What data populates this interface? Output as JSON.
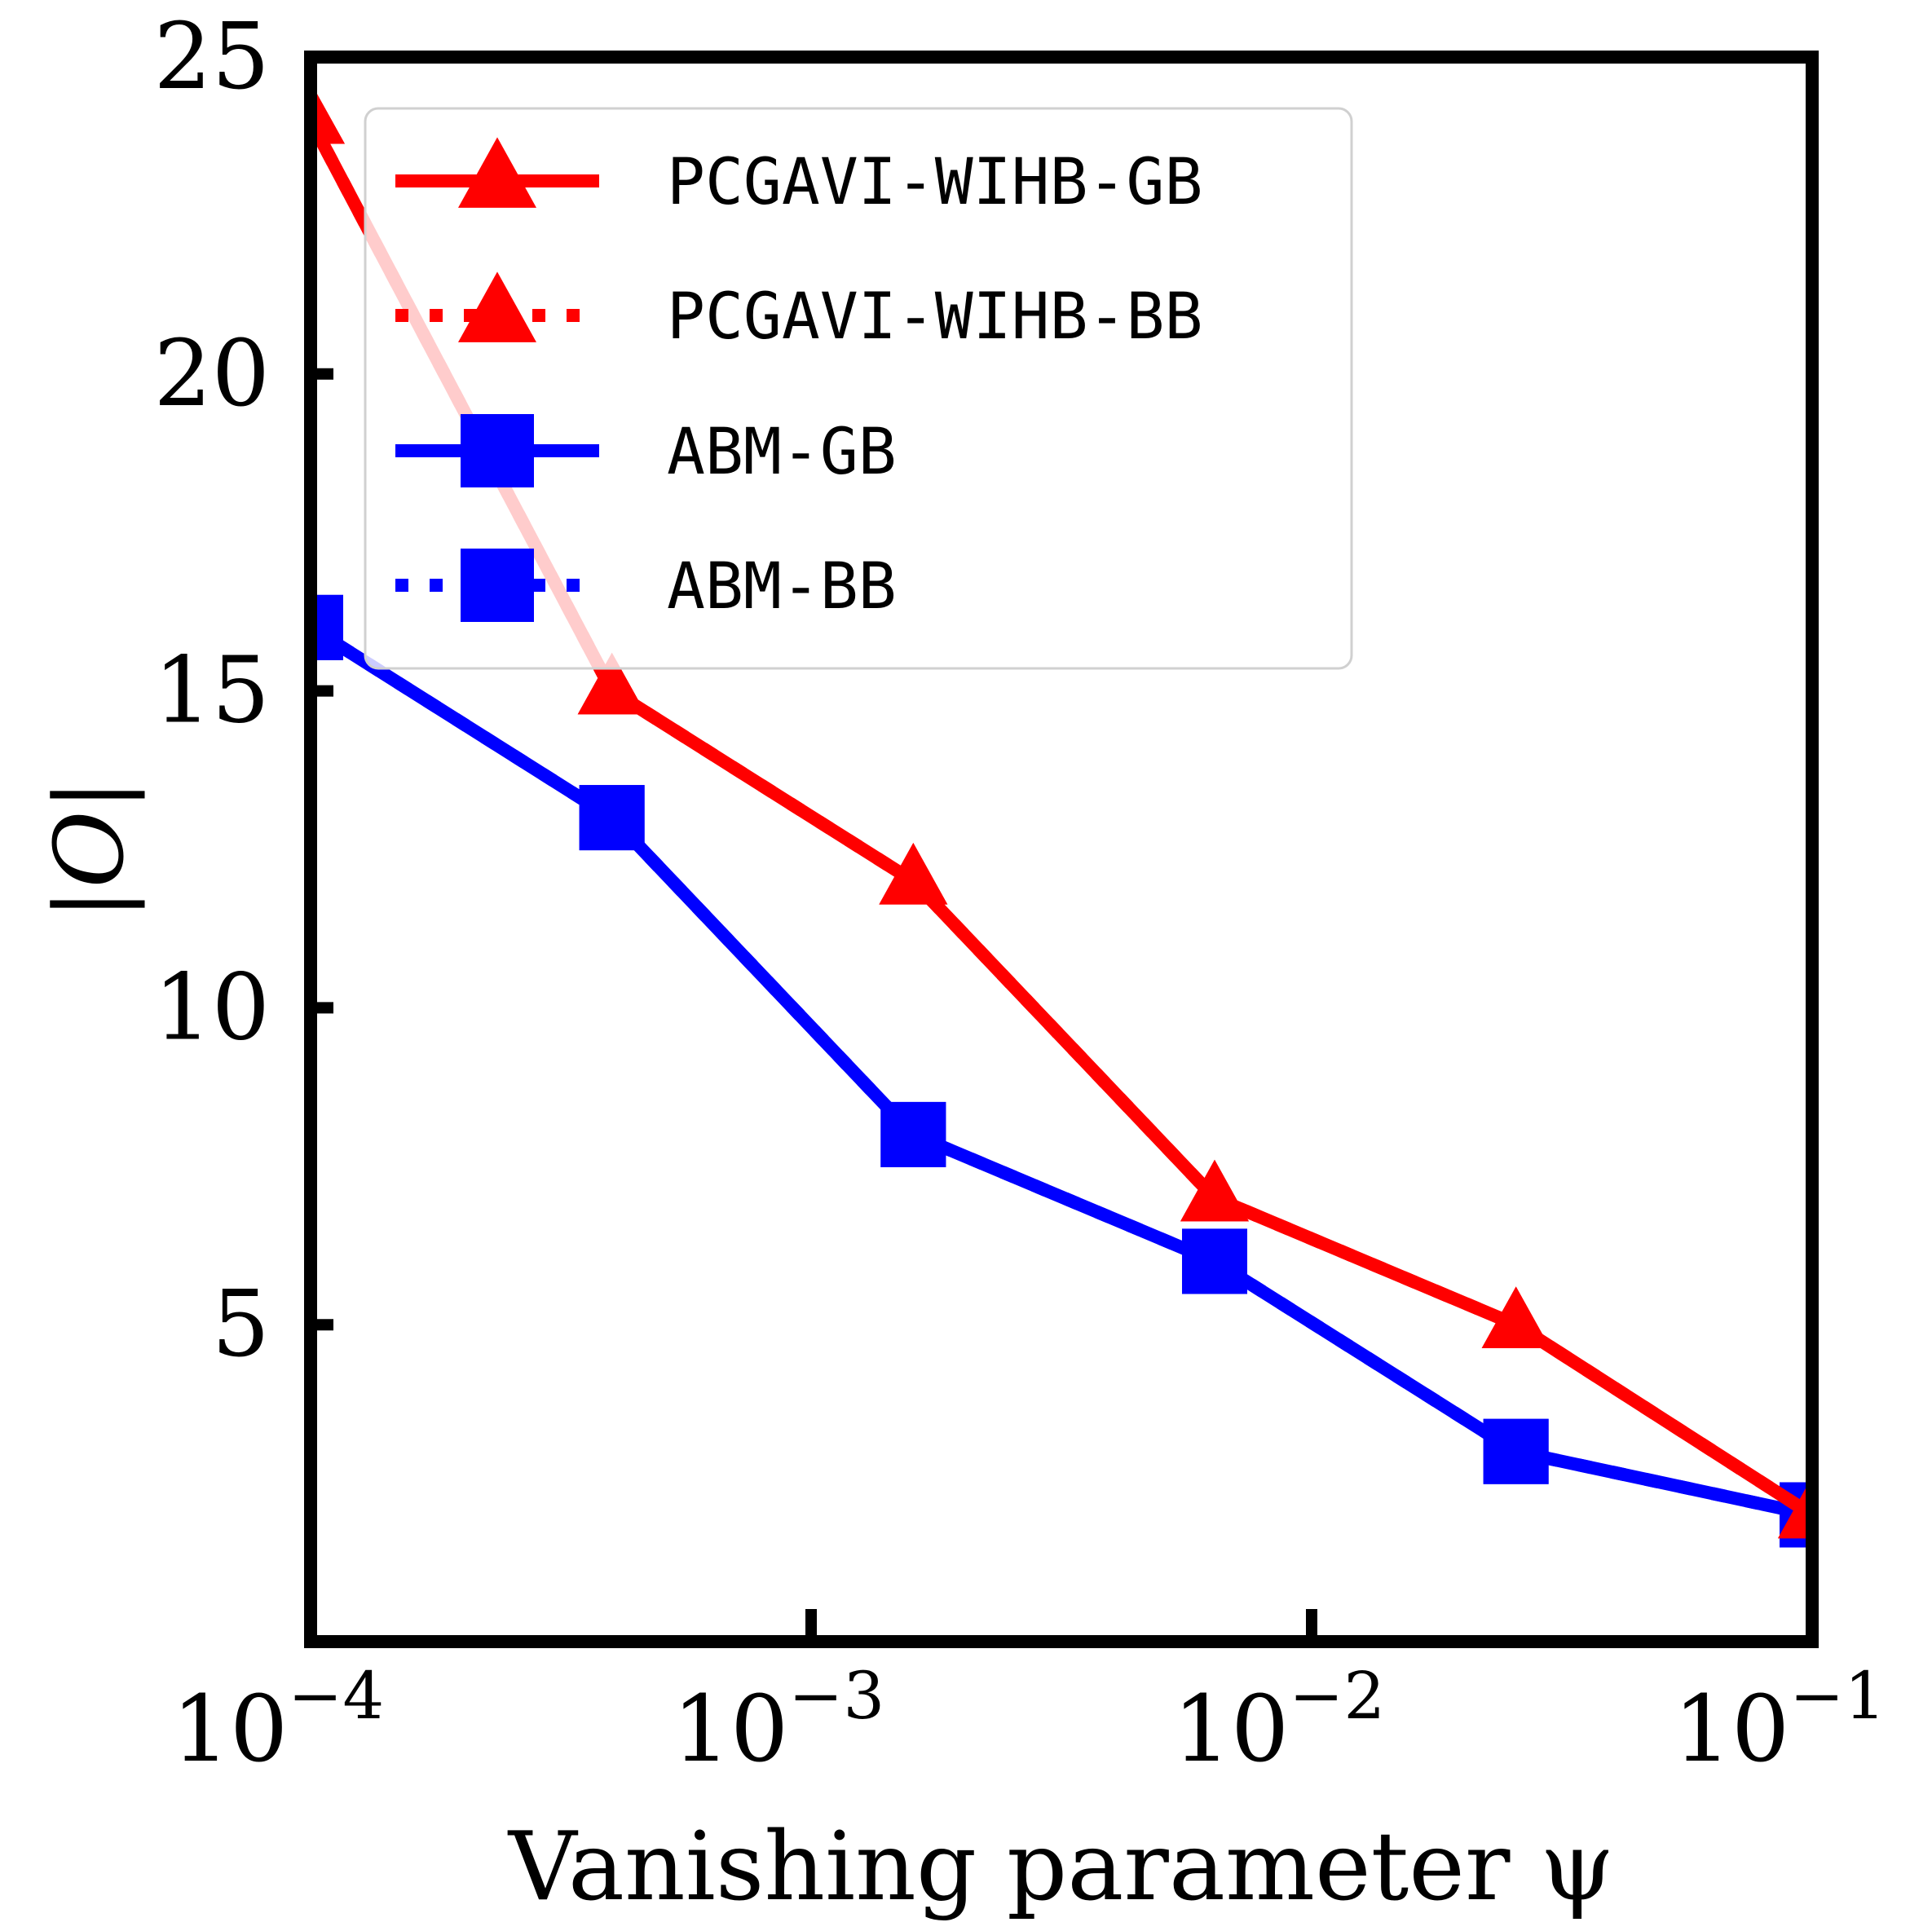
{
  "chart_data": {
    "type": "line",
    "xlabel": "Vanishing parameter ψ",
    "ylabel": "|O|",
    "xscale": "log",
    "xlim": [
      0.0001,
      0.1
    ],
    "ylim": [
      0,
      25
    ],
    "x_ticks": [
      {
        "value": 0.0001,
        "base": "10",
        "exp": "−4"
      },
      {
        "value": 0.001,
        "base": "10",
        "exp": "−3"
      },
      {
        "value": 0.01,
        "base": "10",
        "exp": "−2"
      },
      {
        "value": 0.1,
        "base": "10",
        "exp": "−1"
      }
    ],
    "y_ticks": [
      5,
      10,
      15,
      20,
      25
    ],
    "grid": false,
    "legend_position": "top-right",
    "series": [
      {
        "name": "PCGAVI-WIHB-GB",
        "color": "#ff0000",
        "marker": "triangle",
        "linestyle": "solid",
        "x": [
          0.0001,
          0.0004,
          0.0016,
          0.0064,
          0.0256,
          0.1
        ],
        "y": [
          24,
          15,
          12,
          7,
          5,
          2
        ]
      },
      {
        "name": "PCGAVI-WIHB-BB",
        "color": "#ff0000",
        "marker": "triangle",
        "linestyle": "dotted",
        "x": [
          0.0001,
          0.0004,
          0.0016,
          0.0064,
          0.0256,
          0.1
        ],
        "y": [
          24,
          15,
          12,
          7,
          5,
          2
        ]
      },
      {
        "name": "ABM-GB",
        "color": "#0000ff",
        "marker": "square",
        "linestyle": "solid",
        "x": [
          0.0001,
          0.0004,
          0.0016,
          0.0064,
          0.0256,
          0.1
        ],
        "y": [
          16,
          13,
          8,
          6,
          3,
          2
        ]
      },
      {
        "name": "ABM-BB",
        "color": "#0000ff",
        "marker": "square",
        "linestyle": "dotted",
        "x": [
          0.0001,
          0.0004,
          0.0016,
          0.0064,
          0.0256,
          0.1
        ],
        "y": [
          16,
          13,
          8,
          6,
          3,
          2
        ]
      }
    ]
  }
}
